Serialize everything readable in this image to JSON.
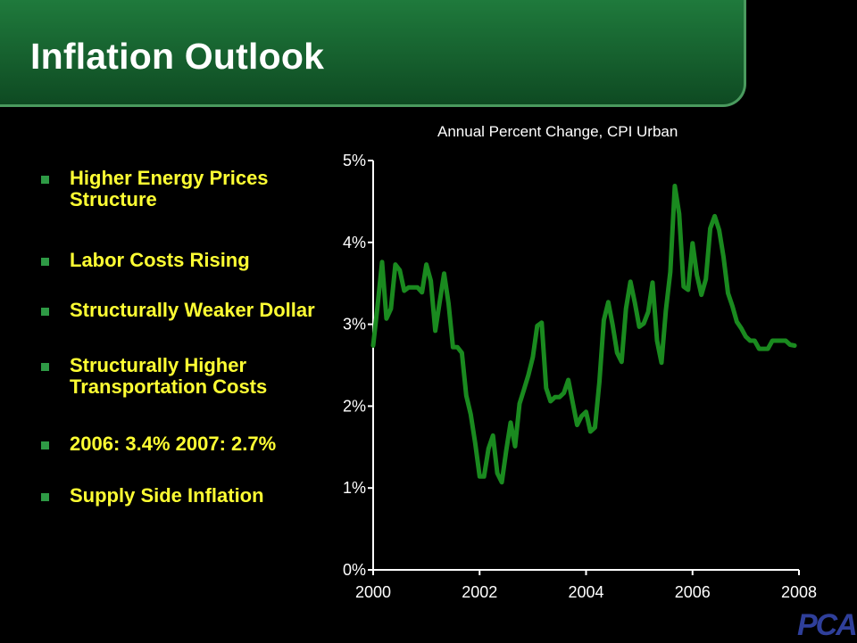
{
  "slide": {
    "title": "Inflation Outlook",
    "logo_text": "PCA",
    "chart_caption": "Annual Percent Change, CPI Urban"
  },
  "bullets": [
    "Higher Energy Prices Structure",
    "Labor Costs Rising",
    "Structurally Weaker Dollar",
    "Structurally Higher Transportation Costs",
    "2006: 3.4%  2007: 2.7%",
    "Supply Side Inflation"
  ],
  "colors": {
    "banner": "#16602e",
    "bullet_text": "#ffff33",
    "bullet_marker": "#2e9a45",
    "line": "#1a8a1f",
    "axis": "#ffffff"
  },
  "chart_data": {
    "type": "line",
    "title": "Annual Percent Change, CPI Urban",
    "xlabel": "",
    "ylabel": "",
    "xlim": [
      2000,
      2008
    ],
    "ylim": [
      0,
      5
    ],
    "x_ticks": [
      "2000",
      "2002",
      "2004",
      "2006",
      "2008"
    ],
    "y_ticks": [
      "0%",
      "1%",
      "2%",
      "3%",
      "4%",
      "5%"
    ],
    "grid": false,
    "series": [
      {
        "x": [
          2000.0,
          2000.083,
          2000.167,
          2000.25,
          2000.333,
          2000.417,
          2000.5,
          2000.583,
          2000.667,
          2000.75,
          2000.833,
          2000.917,
          2001.0,
          2001.083,
          2001.167,
          2001.25,
          2001.333,
          2001.417,
          2001.5,
          2001.583,
          2001.667,
          2001.75,
          2001.833,
          2001.917,
          2002.0,
          2002.083,
          2002.167,
          2002.25,
          2002.333,
          2002.417,
          2002.5,
          2002.583,
          2002.667,
          2002.75,
          2002.833,
          2002.917,
          2003.0,
          2003.083,
          2003.167,
          2003.25,
          2003.333,
          2003.417,
          2003.5,
          2003.583,
          2003.667,
          2003.75,
          2003.833,
          2003.917,
          2004.0,
          2004.083,
          2004.167,
          2004.25,
          2004.333,
          2004.417,
          2004.5,
          2004.583,
          2004.667,
          2004.75,
          2004.833,
          2004.917,
          2005.0,
          2005.083,
          2005.167,
          2005.25,
          2005.333,
          2005.417,
          2005.5,
          2005.583,
          2005.667,
          2005.75,
          2005.833,
          2005.917,
          2006.0,
          2006.083,
          2006.167,
          2006.25,
          2006.333,
          2006.417,
          2006.5,
          2006.583,
          2006.667,
          2006.75,
          2006.833,
          2006.917,
          2007.0,
          2007.083,
          2007.167,
          2007.25,
          2007.333,
          2007.417,
          2007.5,
          2007.583,
          2007.667,
          2007.75,
          2007.833,
          2007.917
        ],
        "y": [
          2.74,
          3.22,
          3.76,
          3.07,
          3.19,
          3.73,
          3.66,
          3.41,
          3.45,
          3.45,
          3.45,
          3.39,
          3.73,
          3.53,
          2.92,
          3.27,
          3.62,
          3.25,
          2.72,
          2.72,
          2.65,
          2.13,
          1.9,
          1.55,
          1.14,
          1.14,
          1.48,
          1.64,
          1.18,
          1.07,
          1.46,
          1.8,
          1.51,
          2.03,
          2.2,
          2.38,
          2.6,
          2.98,
          3.02,
          2.22,
          2.06,
          2.11,
          2.11,
          2.16,
          2.32,
          2.04,
          1.77,
          1.88,
          1.93,
          1.69,
          1.74,
          2.29,
          3.05,
          3.27,
          2.99,
          2.65,
          2.54,
          3.19,
          3.52,
          3.26,
          2.97,
          3.01,
          3.15,
          3.51,
          2.8,
          2.53,
          3.17,
          3.64,
          4.69,
          4.35,
          3.46,
          3.42,
          3.99,
          3.6,
          3.36,
          3.55,
          4.17,
          4.32,
          4.15,
          3.82,
          3.38,
          3.22,
          3.03,
          2.95,
          2.85,
          2.8,
          2.8,
          2.7,
          2.7,
          2.7,
          2.8,
          2.8,
          2.8,
          2.8,
          2.75,
          2.74
        ]
      }
    ]
  }
}
